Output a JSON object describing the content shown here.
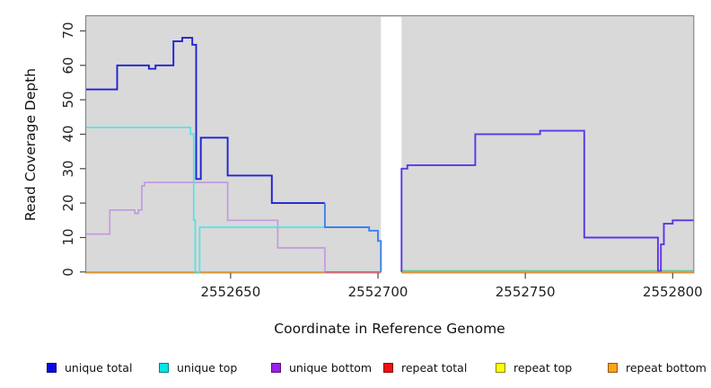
{
  "chart_data": {
    "type": "line",
    "subtype": "step-coverage-plot",
    "xlabel": "Coordinate in Reference Genome",
    "ylabel": "Read Coverage Depth",
    "xlim": [
      2552601,
      2552807
    ],
    "ylim": [
      0,
      74
    ],
    "x_ticks": [
      "2552650",
      "2552700",
      "2552750",
      "2552800"
    ],
    "x_tick_values": [
      2552650,
      2552700,
      2552750,
      2552800
    ],
    "y_ticks": [
      "0",
      "10",
      "20",
      "30",
      "40",
      "50",
      "60",
      "70"
    ],
    "y_tick_values": [
      0,
      10,
      20,
      30,
      40,
      50,
      60,
      70
    ],
    "grid": false,
    "plot_background": "#d9d9d9",
    "frame_color": "#878787",
    "gap_region": {
      "x_start": 2552701,
      "x_end": 2552708,
      "color": "#ffffff",
      "meaning": "no-data band"
    },
    "legend_position": "bottom",
    "legend": [
      {
        "label": "unique total",
        "color": "#0a0ae0"
      },
      {
        "label": "unique top",
        "color": "#00e6e6"
      },
      {
        "label": "unique bottom",
        "color": "#9b1fe8"
      },
      {
        "label": "repeat total",
        "color": "#ee1111"
      },
      {
        "label": "repeat top",
        "color": "#fdfd0d"
      },
      {
        "label": "repeat bottom",
        "color": "#ffa319"
      }
    ],
    "series": [
      {
        "name": "repeat-bottom-line",
        "color": "#ffa019",
        "width": 1.6,
        "steps": [
          [
            2552601,
            2552701,
            0
          ]
        ]
      },
      {
        "name": "repeat-bottom-line-right",
        "color": "#ffa019",
        "width": 1.6,
        "steps": [
          [
            2552708,
            2552807,
            0
          ]
        ]
      },
      {
        "name": "unique-bottom-line",
        "color": "#c29ade",
        "width": 1.7,
        "steps": [
          [
            2552601,
            2552609,
            11
          ],
          [
            2552609,
            2552617.5,
            18
          ],
          [
            2552617.5,
            2552618.7,
            17
          ],
          [
            2552618.7,
            2552619.9,
            18
          ],
          [
            2552619.9,
            2552620.8,
            25
          ],
          [
            2552620.8,
            2552649,
            26
          ],
          [
            2552649,
            2552666,
            15
          ],
          [
            2552666,
            2552682,
            7
          ],
          [
            2552682,
            2552701,
            0
          ]
        ]
      },
      {
        "name": "repeat-total-baseline-overlap",
        "color": "#ea5875",
        "width": 1.5,
        "steps": [
          [
            2552682,
            2552701,
            0
          ]
        ]
      },
      {
        "name": "unique-top-baseline-overlap",
        "color": "#6fc383",
        "width": 1.5,
        "steps": [
          [
            2552708,
            2552807,
            0.35
          ]
        ]
      },
      {
        "name": "unique-top-line",
        "color": "#53e3e3",
        "width": 1.7,
        "steps": [
          [
            2552601,
            2552636.4,
            42
          ],
          [
            2552636.4,
            2552637.5,
            40
          ],
          [
            2552637.5,
            2552638,
            15
          ],
          [
            2552638,
            2552639.5,
            0
          ],
          [
            2552639.5,
            2552682,
            13
          ]
        ]
      },
      {
        "name": "unique-total-line",
        "color": "#2121d3",
        "width": 1.9,
        "steps": [
          [
            2552601,
            2552611.5,
            53
          ],
          [
            2552611.5,
            2552622.3,
            60
          ],
          [
            2552622.3,
            2552624.5,
            59
          ],
          [
            2552624.5,
            2552630.6,
            60
          ],
          [
            2552630.6,
            2552633.6,
            67
          ],
          [
            2552633.6,
            2552637,
            68
          ],
          [
            2552637,
            2552638.3,
            66
          ],
          [
            2552638.3,
            2552639.9,
            27
          ],
          [
            2552639.9,
            2552649,
            39
          ],
          [
            2552649,
            2552664,
            28
          ],
          [
            2552664,
            2552682,
            20
          ]
        ]
      },
      {
        "name": "unique-total-over-top-line",
        "color": "#3b82f0",
        "width": 1.9,
        "steps": [
          [
            2552682,
            2552682,
            20
          ],
          [
            2552682,
            2552697,
            13
          ],
          [
            2552697,
            2552700,
            12
          ],
          [
            2552700,
            2552701,
            9
          ],
          [
            2552701,
            2552701,
            0
          ]
        ]
      },
      {
        "name": "unique-total-over-bottom-line",
        "color": "#5b36e6",
        "width": 1.9,
        "steps": [
          [
            2552708,
            2552708,
            0
          ],
          [
            2552708,
            2552710,
            30
          ],
          [
            2552710,
            2552733,
            31
          ],
          [
            2552733,
            2552755,
            40
          ],
          [
            2552755,
            2552770,
            41
          ],
          [
            2552770,
            2552795,
            10
          ],
          [
            2552795,
            2552796,
            0.3
          ],
          [
            2552796,
            2552797,
            8
          ],
          [
            2552797,
            2552800,
            14
          ],
          [
            2552800,
            2552807,
            15
          ]
        ]
      }
    ]
  }
}
